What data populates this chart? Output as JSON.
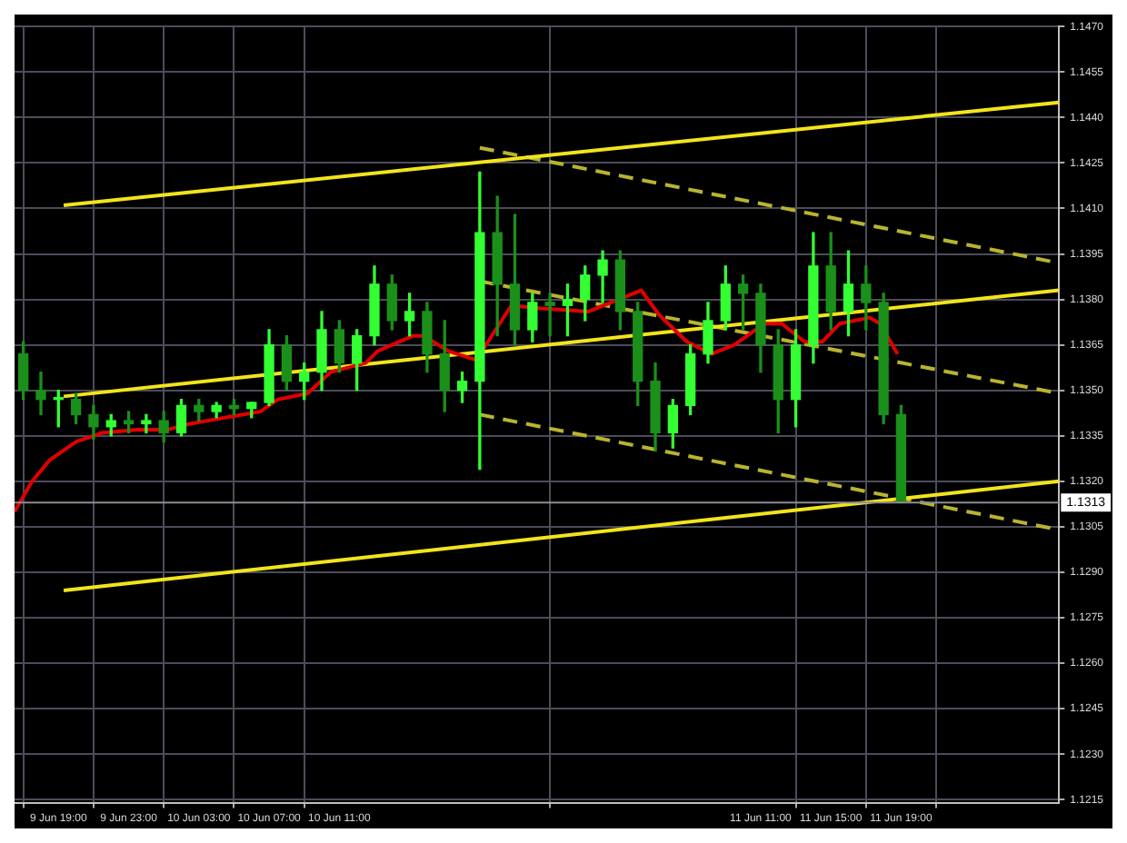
{
  "chart_data": {
    "type": "candlestick",
    "colors": [
      "#1a8f1a",
      "#1a8f1a",
      "#33ff33",
      "#1a8f1a",
      "#1a8f1a",
      "#33ff33",
      "#1a8f1a",
      "#33ff33",
      "#1a8f1a",
      "#33ff33",
      "#1a8f1a",
      "#33ff33",
      "#1a8f1a",
      "#33ff33",
      "#33ff33",
      "#1a8f1a",
      "#33ff33",
      "#33ff33",
      "#1a8f1a",
      "#33ff33",
      "#33ff33",
      "#1a8f1a",
      "#33ff33",
      "#1a8f1a",
      "#1a8f1a",
      "#33ff33",
      "#33ff33",
      "#1a8f1a",
      "#1a8f1a",
      "#33ff33",
      "#1a8f1a",
      "#33ff33",
      "#33ff33",
      "#33ff33",
      "#1a8f1a",
      "#1a8f1a",
      "#1a8f1a",
      "#33ff33",
      "#33ff33",
      "#33ff33",
      "#33ff33",
      "#1a8f1a",
      "#1a8f1a",
      "#1a8f1a",
      "#33ff33",
      "#33ff33",
      "#1a8f1a",
      "#33ff33",
      "#1a8f1a",
      "#1a8f1a",
      "#1a8f1a"
    ],
    "x": [
      "--06-09T17:00",
      "--06-09T18:00",
      "--06-09T19:00",
      "--06-09T20:00",
      "--06-09T21:00",
      "--06-09T22:00",
      "--06-09T23:00",
      "--06-10T00:00",
      "--06-10T01:00",
      "--06-10T02:00",
      "--06-10T03:00",
      "--06-10T04:00",
      "--06-10T05:00",
      "--06-10T06:00",
      "--06-10T07:00",
      "--06-10T08:00",
      "--06-10T09:00",
      "--06-10T10:00",
      "--06-10T11:00",
      "--06-10T12:00",
      "--06-10T13:00",
      "--06-10T14:00",
      "--06-10T15:00",
      "--06-10T16:00",
      "--06-10T17:00",
      "--06-10T18:00",
      "--06-10T19:00",
      "--06-10T20:00",
      "--06-10T21:00",
      "--06-10T22:00",
      "--06-10T23:00",
      "--06-11T00:00",
      "--06-11T01:00",
      "--06-11T02:00",
      "--06-11T03:00",
      "--06-11T04:00",
      "--06-11T05:00",
      "--06-11T06:00",
      "--06-11T07:00",
      "--06-11T08:00",
      "--06-11T09:00",
      "--06-11T10:00",
      "--06-11T11:00",
      "--06-11T12:00",
      "--06-11T13:00",
      "--06-11T14:00",
      "--06-11T15:00",
      "--06-11T16:00",
      "--06-11T17:00",
      "--06-11T18:00",
      "--06-11T19:00"
    ],
    "ohlc": [
      [
        1.1362,
        1.1366,
        1.1347,
        1.135
      ],
      [
        1.135,
        1.1356,
        1.1342,
        1.1347
      ],
      [
        1.1347,
        1.135,
        1.1338,
        1.1347
      ],
      [
        1.1347,
        1.1349,
        1.1339,
        1.1342
      ],
      [
        1.1342,
        1.1345,
        1.1334,
        1.1338
      ],
      [
        1.1338,
        1.1342,
        1.1335,
        1.134
      ],
      [
        1.134,
        1.1343,
        1.1336,
        1.1339
      ],
      [
        1.1339,
        1.1342,
        1.1336,
        1.134
      ],
      [
        1.134,
        1.1343,
        1.1333,
        1.1336
      ],
      [
        1.1336,
        1.1347,
        1.1335,
        1.1345
      ],
      [
        1.1345,
        1.1347,
        1.134,
        1.1343
      ],
      [
        1.1343,
        1.1346,
        1.1341,
        1.1345
      ],
      [
        1.1345,
        1.1347,
        1.1342,
        1.1344
      ],
      [
        1.1344,
        1.1346,
        1.1341,
        1.1346
      ],
      [
        1.1346,
        1.137,
        1.1345,
        1.1365
      ],
      [
        1.1365,
        1.1368,
        1.135,
        1.1353
      ],
      [
        1.1353,
        1.1359,
        1.1347,
        1.1356
      ],
      [
        1.1356,
        1.1376,
        1.135,
        1.137
      ],
      [
        1.137,
        1.1373,
        1.1356,
        1.1359
      ],
      [
        1.1359,
        1.137,
        1.135,
        1.1368
      ],
      [
        1.1368,
        1.1391,
        1.1365,
        1.1385
      ],
      [
        1.1385,
        1.1388,
        1.137,
        1.1373
      ],
      [
        1.1373,
        1.1382,
        1.1368,
        1.1376
      ],
      [
        1.1376,
        1.1379,
        1.1356,
        1.1362
      ],
      [
        1.1362,
        1.1373,
        1.1343,
        1.135
      ],
      [
        1.135,
        1.1356,
        1.1346,
        1.1353
      ],
      [
        1.1353,
        1.1422,
        1.1324,
        1.1402
      ],
      [
        1.1402,
        1.1414,
        1.1368,
        1.1385
      ],
      [
        1.1385,
        1.1408,
        1.1365,
        1.137
      ],
      [
        1.137,
        1.1382,
        1.1366,
        1.1379
      ],
      [
        1.1379,
        1.1382,
        1.1368,
        1.1378
      ],
      [
        1.1378,
        1.1385,
        1.1368,
        1.138
      ],
      [
        1.138,
        1.1391,
        1.1373,
        1.1388
      ],
      [
        1.1388,
        1.1396,
        1.1379,
        1.1393
      ],
      [
        1.1393,
        1.1396,
        1.137,
        1.1376
      ],
      [
        1.1376,
        1.1379,
        1.1345,
        1.1353
      ],
      [
        1.1353,
        1.1359,
        1.133,
        1.1336
      ],
      [
        1.1336,
        1.1347,
        1.1331,
        1.1345
      ],
      [
        1.1345,
        1.1365,
        1.1342,
        1.1362
      ],
      [
        1.1362,
        1.1379,
        1.1359,
        1.1373
      ],
      [
        1.1373,
        1.1391,
        1.137,
        1.1385
      ],
      [
        1.1385,
        1.1388,
        1.137,
        1.1382
      ],
      [
        1.1382,
        1.1385,
        1.1356,
        1.1365
      ],
      [
        1.1365,
        1.137,
        1.1336,
        1.1347
      ],
      [
        1.1347,
        1.137,
        1.1338,
        1.1365
      ],
      [
        1.1365,
        1.1402,
        1.1359,
        1.1391
      ],
      [
        1.1391,
        1.1402,
        1.137,
        1.1376
      ],
      [
        1.1376,
        1.1396,
        1.1368,
        1.1385
      ],
      [
        1.1385,
        1.1391,
        1.137,
        1.1379
      ],
      [
        1.1379,
        1.1382,
        1.1339,
        1.1342
      ],
      [
        1.1342,
        1.1345,
        1.1313,
        1.1313
      ]
    ],
    "series": [
      {
        "type": "line",
        "color": "#e00000",
        "line_style": "solid",
        "x": [
          "--06-09T16:30",
          "--06-09T17:30",
          "--06-09T18:30",
          "--06-09T20:00",
          "--06-09T21:30",
          "--06-09T23:30",
          "--06-10T01:12",
          "--06-10T02:30",
          "--06-10T06:30",
          "--06-10T07:30",
          "--06-10T09:12",
          "--06-10T10:30",
          "--06-10T12:30",
          "--06-10T13:12",
          "--06-10T15:12",
          "--06-10T15:48",
          "--06-10T17:12",
          "--06-10T18:48",
          "--06-10T19:48",
          "--06-10T20:48",
          "--06-10T22:30",
          "--06-11T01:12",
          "--06-11T04:12",
          "--06-11T05:12",
          "--06-11T06:48",
          "--06-11T08:12",
          "--06-11T09:30",
          "--06-11T11:12",
          "--06-11T12:12",
          "--06-11T13:30",
          "--06-11T14:30",
          "--06-11T15:30",
          "--06-11T17:12",
          "--06-11T17:48",
          "--06-11T18:48"
        ],
        "values": [
          1.131,
          1.132,
          1.1327,
          1.1333,
          1.1336,
          1.1337,
          1.1337,
          1.1339,
          1.1343,
          1.1347,
          1.1349,
          1.1356,
          1.1359,
          1.1363,
          1.1368,
          1.1368,
          1.1363,
          1.136,
          1.1369,
          1.1378,
          1.1377,
          1.1376,
          1.1383,
          1.1375,
          1.1366,
          1.1362,
          1.1365,
          1.1372,
          1.1372,
          1.1366,
          1.1366,
          1.1372,
          1.1374,
          1.1372,
          1.1362
        ]
      },
      {
        "type": "line",
        "color": "#f2e41c",
        "line_style": "solid",
        "x": [
          "--06-09T19:18",
          "--06-12T04:00"
        ],
        "values": [
          1.1411,
          1.1445
        ]
      },
      {
        "type": "line",
        "color": "#f2e41c",
        "line_style": "solid",
        "x": [
          "--06-09T19:18",
          "--06-12T04:00"
        ],
        "values": [
          1.1348,
          1.1383
        ]
      },
      {
        "type": "line",
        "color": "#f2e41c",
        "line_style": "solid",
        "x": [
          "--06-09T19:18",
          "--06-12T04:00"
        ],
        "values": [
          1.1284,
          1.132
        ]
      },
      {
        "type": "line",
        "color": "#b8b430",
        "line_style": "dashed",
        "x": [
          "--06-10T19:00",
          "--06-12T04:00"
        ],
        "values": [
          1.143,
          1.1392
        ]
      },
      {
        "type": "line",
        "color": "#b8b430",
        "line_style": "dashed",
        "x": [
          "--06-10T19:00",
          "--06-12T04:00"
        ],
        "values": [
          1.1386,
          1.1349
        ]
      },
      {
        "type": "line",
        "color": "#b8b430",
        "line_style": "dashed",
        "x": [
          "--06-10T19:00",
          "--06-12T04:00"
        ],
        "values": [
          1.1342,
          1.1304
        ]
      }
    ],
    "xlim": [
      "--06-09T16:30",
      "--06-12T04:00"
    ],
    "xticks": [
      {
        "value": "--06-09T19:00",
        "label": "9 Jun 19:00"
      },
      {
        "value": "--06-09T23:00",
        "label": "9 Jun 23:00"
      },
      {
        "value": "--06-10T03:00",
        "label": "10 Jun 03:00"
      },
      {
        "value": "--06-10T07:00",
        "label": "10 Jun 07:00"
      },
      {
        "value": "--06-10T11:00",
        "label": "10 Jun 11:00"
      },
      {
        "value": "--06-11T11:00",
        "label": "11 Jun 11:00"
      },
      {
        "value": "--06-11T15:00",
        "label": "11 Jun 15:00"
      },
      {
        "value": "--06-11T19:00",
        "label": "11 Jun 19:00"
      }
    ],
    "ylim": [
      1.1214,
      1.147
    ],
    "yticks": [
      1.1215,
      {
        "value": 1.123,
        "label": "1.1230"
      },
      1.1245,
      {
        "value": 1.126,
        "label": "1.1260"
      },
      1.1275,
      {
        "value": 1.129,
        "label": "1.1290"
      },
      1.1305,
      {
        "value": 1.132,
        "label": "1.1320"
      },
      1.1335,
      {
        "value": 1.135,
        "label": "1.1350"
      },
      1.1365,
      {
        "value": 1.138,
        "label": "1.1380"
      },
      1.1395,
      {
        "value": 1.141,
        "label": "1.1410"
      },
      1.1425,
      {
        "value": 1.144,
        "label": "1.1440"
      },
      1.1455,
      {
        "value": 1.147,
        "label": "1.1470"
      }
    ],
    "ref_lines": [
      {
        "axis": "y",
        "value": 1.1313,
        "label": "1.1313",
        "color": "#8c8c96"
      }
    ],
    "grid": true,
    "legend": false
  }
}
